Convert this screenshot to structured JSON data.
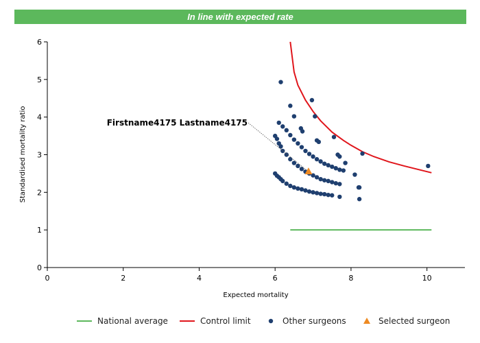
{
  "banner": {
    "text": "In line with expected rate"
  },
  "colors": {
    "banner": "#5cb85c",
    "national": "#5cb85c",
    "control": "#e0151b",
    "other": "#1f3f6f",
    "selected": "#ee8a22"
  },
  "chart_data": {
    "type": "scatter",
    "title": "",
    "xlabel": "Expected mortality",
    "ylabel": "Standardised mortality ratio",
    "xlim": [
      0,
      11
    ],
    "ylim": [
      0,
      6
    ],
    "xticks": [
      0,
      2,
      4,
      6,
      8,
      10
    ],
    "yticks": [
      0,
      1,
      2,
      3,
      4,
      5,
      6
    ],
    "annotation": {
      "text": "Firstname4175 Lastname4175",
      "x": 6.88,
      "y": 2.55
    },
    "legend_position": "bottom",
    "series": [
      {
        "name": "National average",
        "kind": "line",
        "x": [
          6.4,
          10.12
        ],
        "y": [
          1.0,
          1.0
        ]
      },
      {
        "name": "Control limit",
        "kind": "line",
        "x": [
          6.4,
          6.5,
          6.6,
          6.8,
          7.0,
          7.2,
          7.5,
          7.8,
          8.0,
          8.3,
          8.6,
          9.0,
          9.4,
          9.8,
          10.12
        ],
        "y": [
          6.0,
          5.2,
          4.85,
          4.45,
          4.15,
          3.9,
          3.6,
          3.38,
          3.25,
          3.08,
          2.95,
          2.81,
          2.7,
          2.6,
          2.52
        ]
      },
      {
        "name": "Other surgeons",
        "kind": "points",
        "x": [
          6.0,
          6.05,
          6.1,
          6.15,
          6.2,
          6.3,
          6.4,
          6.5,
          6.6,
          6.7,
          6.8,
          6.9,
          7.0,
          7.1,
          7.2,
          7.3,
          7.4,
          7.5,
          6.0,
          6.05,
          6.1,
          6.15,
          6.2,
          6.3,
          6.4,
          6.5,
          6.6,
          6.7,
          6.8,
          6.9,
          7.0,
          7.1,
          7.2,
          7.3,
          7.4,
          7.5,
          7.6,
          7.7,
          6.1,
          6.2,
          6.3,
          6.4,
          6.5,
          6.6,
          6.7,
          6.8,
          6.9,
          7.0,
          7.1,
          7.2,
          7.3,
          7.4,
          7.5,
          7.6,
          7.7,
          7.8,
          6.15,
          6.4,
          6.5,
          6.68,
          6.72,
          6.97,
          7.05,
          7.1,
          7.15,
          7.55,
          7.65,
          7.7,
          7.85,
          8.1,
          8.2,
          8.22,
          8.3,
          10.03,
          7.7,
          8.22
        ],
        "y": [
          2.5,
          2.44,
          2.4,
          2.35,
          2.3,
          2.23,
          2.17,
          2.13,
          2.1,
          2.08,
          2.05,
          2.02,
          2.0,
          1.98,
          1.96,
          1.95,
          1.93,
          1.92,
          3.5,
          3.42,
          3.3,
          3.22,
          3.1,
          3.0,
          2.88,
          2.78,
          2.7,
          2.62,
          2.55,
          2.5,
          2.45,
          2.4,
          2.35,
          2.32,
          2.3,
          2.27,
          2.24,
          2.22,
          3.85,
          3.75,
          3.65,
          3.52,
          3.4,
          3.3,
          3.2,
          3.1,
          3.02,
          2.95,
          2.88,
          2.82,
          2.76,
          2.72,
          2.68,
          2.64,
          2.6,
          2.58,
          4.93,
          4.3,
          4.02,
          3.7,
          3.62,
          4.45,
          4.02,
          3.38,
          3.34,
          3.47,
          3.0,
          2.95,
          2.78,
          2.47,
          2.13,
          1.82,
          3.03,
          2.7,
          1.88,
          2.13
        ]
      },
      {
        "name": "Selected surgeon",
        "kind": "marker",
        "x": [
          6.88
        ],
        "y": [
          2.55
        ]
      }
    ]
  }
}
